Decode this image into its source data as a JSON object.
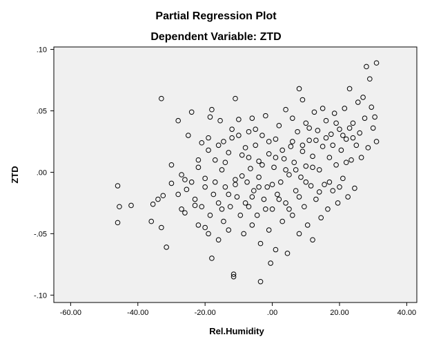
{
  "chart_data": {
    "type": "scatter",
    "title": "Partial Regression Plot",
    "subtitle": "Dependent Variable: ZTD",
    "xlabel": "Rel.Humidity",
    "ylabel": "ZTD",
    "xlim": [
      -65,
      43
    ],
    "ylim": [
      -0.106,
      0.102
    ],
    "x_ticks": [
      -60,
      -40,
      -20,
      0,
      20,
      40
    ],
    "x_tick_labels": [
      "-60.00",
      "-40.00",
      "-20.00",
      ".00",
      "20.00",
      "40.00"
    ],
    "y_ticks": [
      -0.1,
      -0.05,
      0,
      0.05,
      0.1
    ],
    "y_tick_labels": [
      "-.10",
      "-.05",
      ".00",
      ".05",
      ".10"
    ],
    "grid": false,
    "plot_background": "#f0f0f0",
    "marker": "open-circle",
    "points": [
      [
        -46,
        -0.011
      ],
      [
        -45.5,
        -0.028
      ],
      [
        -46,
        -0.041
      ],
      [
        -42,
        -0.027
      ],
      [
        -36,
        -0.04
      ],
      [
        -35.5,
        -0.026
      ],
      [
        -34,
        -0.022
      ],
      [
        -33,
        -0.045
      ],
      [
        -32.5,
        -0.019
      ],
      [
        -33,
        0.06
      ],
      [
        -31.5,
        -0.061
      ],
      [
        -30,
        -0.009
      ],
      [
        -28,
        -0.018
      ],
      [
        -27,
        -0.03
      ],
      [
        -27,
        -0.002
      ],
      [
        -28,
        0.042
      ],
      [
        -26,
        -0.033
      ],
      [
        -25.5,
        -0.014
      ],
      [
        -25,
        0.03
      ],
      [
        -24,
        -0.008
      ],
      [
        -24,
        0.049
      ],
      [
        -23,
        -0.022
      ],
      [
        -22,
        -0.043
      ],
      [
        -22,
        0.004
      ],
      [
        -21,
        -0.028
      ],
      [
        -21,
        0.024
      ],
      [
        -20,
        -0.045
      ],
      [
        -20,
        -0.012
      ],
      [
        -19,
        -0.05
      ],
      [
        -19,
        0.018
      ],
      [
        -18.5,
        -0.035
      ],
      [
        -18.5,
        0.045
      ],
      [
        -18,
        -0.07
      ],
      [
        -18,
        0.051
      ],
      [
        -17.5,
        -0.018
      ],
      [
        -17,
        0.01
      ],
      [
        -16,
        -0.055
      ],
      [
        -16,
        -0.025
      ],
      [
        -15.5,
        0.042
      ],
      [
        -15,
        0.002
      ],
      [
        -14.5,
        -0.04
      ],
      [
        -14.5,
        0.025
      ],
      [
        -14,
        -0.012
      ],
      [
        -13,
        -0.047
      ],
      [
        -13,
        0.016
      ],
      [
        -12.5,
        -0.028
      ],
      [
        -12,
        0.035
      ],
      [
        -11.5,
        -0.083
      ],
      [
        -11.5,
        -0.085
      ],
      [
        -11,
        0.06
      ],
      [
        -11,
        -0.006
      ],
      [
        -10.5,
        -0.02
      ],
      [
        -10,
        0.043
      ],
      [
        -9.5,
        -0.035
      ],
      [
        -9,
        0.014
      ],
      [
        -8.5,
        -0.05
      ],
      [
        -8,
        0.02
      ],
      [
        -7.5,
        -0.008
      ],
      [
        -7,
        -0.028
      ],
      [
        -7,
        0.033
      ],
      [
        -6.5,
        0.003
      ],
      [
        -6,
        -0.043
      ],
      [
        -6,
        0.044
      ],
      [
        -5.5,
        -0.015
      ],
      [
        -5,
        0.022
      ],
      [
        -4.5,
        -0.035
      ],
      [
        -4,
        -0.004
      ],
      [
        -4,
        0.009
      ],
      [
        -3.5,
        -0.058
      ],
      [
        -3.5,
        -0.089
      ],
      [
        -3,
        0.03
      ],
      [
        -2.5,
        -0.022
      ],
      [
        -2,
        0.046
      ],
      [
        -1.5,
        -0.012
      ],
      [
        -1,
        0.015
      ],
      [
        -1,
        -0.047
      ],
      [
        -0.5,
        -0.074
      ],
      [
        0,
        -0.03
      ],
      [
        0.5,
        0.004
      ],
      [
        1,
        0.027
      ],
      [
        1,
        -0.063
      ],
      [
        1.5,
        -0.018
      ],
      [
        2,
        0.038
      ],
      [
        2.5,
        -0.008
      ],
      [
        3,
        -0.04
      ],
      [
        3.5,
        0.011
      ],
      [
        4,
        0.051
      ],
      [
        4,
        -0.025
      ],
      [
        4.5,
        -0.066
      ],
      [
        5,
        -0.002
      ],
      [
        5.5,
        0.021
      ],
      [
        6,
        -0.035
      ],
      [
        6,
        0.044
      ],
      [
        6.5,
        0.008
      ],
      [
        7,
        -0.015
      ],
      [
        7.5,
        0.033
      ],
      [
        8,
        -0.05
      ],
      [
        8,
        0.068
      ],
      [
        8.5,
        -0.004
      ],
      [
        9,
        0.017
      ],
      [
        9,
        0.059
      ],
      [
        9.5,
        -0.028
      ],
      [
        10,
        0.005
      ],
      [
        10,
        0.04
      ],
      [
        10.5,
        -0.043
      ],
      [
        11,
        0.026
      ],
      [
        11.5,
        -0.011
      ],
      [
        12,
        0.013
      ],
      [
        12,
        -0.055
      ],
      [
        12.5,
        0.049
      ],
      [
        13,
        -0.022
      ],
      [
        13.5,
        0.034
      ],
      [
        14,
        0.002
      ],
      [
        14.5,
        -0.037
      ],
      [
        15,
        0.021
      ],
      [
        15,
        0.052
      ],
      [
        15.5,
        -0.01
      ],
      [
        16,
        0.042
      ],
      [
        16.5,
        -0.03
      ],
      [
        17,
        0.012
      ],
      [
        17.5,
        0.031
      ],
      [
        18,
        -0.015
      ],
      [
        18.5,
        0.048
      ],
      [
        19,
        0.006
      ],
      [
        19.5,
        -0.025
      ],
      [
        20,
        0.035
      ],
      [
        20.5,
        0.018
      ],
      [
        21,
        -0.005
      ],
      [
        21.5,
        0.052
      ],
      [
        22,
        0.027
      ],
      [
        22.5,
        -0.02
      ],
      [
        23,
        0.068
      ],
      [
        23.5,
        0.01
      ],
      [
        24,
        0.04
      ],
      [
        24.5,
        -0.013
      ],
      [
        25,
        0.022
      ],
      [
        25.5,
        0.057
      ],
      [
        26,
        0.032
      ],
      [
        26.5,
        0.012
      ],
      [
        27,
        0.061
      ],
      [
        27.5,
        0.044
      ],
      [
        28,
        0.086
      ],
      [
        28.5,
        0.02
      ],
      [
        29,
        0.076
      ],
      [
        29.5,
        0.053
      ],
      [
        30,
        0.036
      ],
      [
        30.5,
        0.045
      ],
      [
        31,
        0.089
      ],
      [
        31,
        0.025
      ],
      [
        -30,
        0.006
      ],
      [
        -26,
        -0.006
      ],
      [
        -23,
        -0.027
      ],
      [
        -22,
        0.01
      ],
      [
        -20,
        -0.005
      ],
      [
        -19,
        0.028
      ],
      [
        -17,
        -0.008
      ],
      [
        -16,
        0.022
      ],
      [
        -15,
        -0.03
      ],
      [
        -14,
        0.008
      ],
      [
        -13,
        -0.018
      ],
      [
        -12,
        0.028
      ],
      [
        -11,
        -0.01
      ],
      [
        -10,
        0.03
      ],
      [
        -9,
        -0.003
      ],
      [
        -8,
        -0.025
      ],
      [
        -7,
        0.012
      ],
      [
        -6,
        -0.02
      ],
      [
        -5,
        0.035
      ],
      [
        -4,
        -0.012
      ],
      [
        -3,
        0.006
      ],
      [
        -2,
        -0.03
      ],
      [
        -1,
        0.025
      ],
      [
        0,
        -0.01
      ],
      [
        1,
        0.012
      ],
      [
        2,
        -0.022
      ],
      [
        3,
        0.018
      ],
      [
        4,
        0.002
      ],
      [
        5,
        -0.03
      ],
      [
        6,
        0.025
      ],
      [
        7,
        0.002
      ],
      [
        8,
        -0.02
      ],
      [
        9,
        0.022
      ],
      [
        10,
        -0.008
      ],
      [
        11,
        0.036
      ],
      [
        12,
        0.004
      ],
      [
        13,
        0.026
      ],
      [
        14,
        -0.016
      ],
      [
        16,
        0.028
      ],
      [
        17,
        -0.008
      ],
      [
        18,
        0.022
      ],
      [
        19,
        0.04
      ],
      [
        20,
        -0.012
      ],
      [
        21,
        0.03
      ],
      [
        22,
        0.008
      ],
      [
        23,
        0.036
      ],
      [
        24,
        0.028
      ]
    ]
  }
}
